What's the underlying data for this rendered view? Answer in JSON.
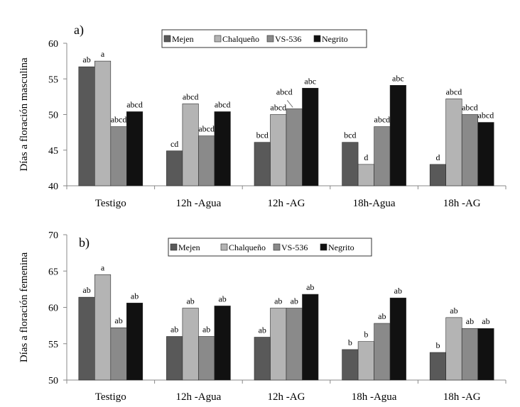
{
  "colors": {
    "series": [
      "#595959",
      "#b4b4b4",
      "#8a8a8a",
      "#111111"
    ],
    "axis": "#888888",
    "bar_edge": "#2a2a2a"
  },
  "chart_data": [
    {
      "type": "bar",
      "panel_label": "a)",
      "ylabel": "Días a floración masculina",
      "ylim": [
        40,
        60
      ],
      "yticks": [
        "40",
        "45",
        "50",
        "55",
        "60"
      ],
      "grid": false,
      "legend_position": "top-center",
      "categories": [
        "Testigo",
        "12h -Agua",
        "12h -AG",
        "18h-Agua",
        "18h -AG"
      ],
      "series": [
        {
          "name": "Mejen",
          "values": [
            56.7,
            44.9,
            46.1,
            46.1,
            43.0
          ]
        },
        {
          "name": "Chalqueño",
          "values": [
            57.5,
            51.5,
            50.0,
            43.0,
            52.2
          ]
        },
        {
          "name": "VS-536",
          "values": [
            48.3,
            47.0,
            50.8,
            48.3,
            50.0
          ]
        },
        {
          "name": "Negrito",
          "values": [
            50.4,
            50.4,
            53.7,
            54.1,
            48.9
          ]
        }
      ],
      "labels": [
        [
          "ab",
          "cd",
          "bcd",
          "bcd",
          "d"
        ],
        [
          "a",
          "abcd",
          "abcd",
          "d",
          "abcd"
        ],
        [
          "abcd",
          "abcd",
          "abcd",
          "abcd",
          "abcd"
        ],
        [
          "abcd",
          "abcd",
          "abc",
          "abc",
          "abcd"
        ]
      ]
    },
    {
      "type": "bar",
      "panel_label": "b)",
      "ylabel": "Días a floración femenina",
      "ylim": [
        50,
        70
      ],
      "yticks": [
        "50",
        "55",
        "60",
        "65",
        "70"
      ],
      "grid": false,
      "legend_position": "top-center",
      "categories": [
        "Testigo",
        "12h -Agua",
        "12h -AG",
        "18h -Agua",
        "18h -AG"
      ],
      "series": [
        {
          "name": "Mejen",
          "values": [
            61.4,
            56.0,
            55.9,
            54.2,
            53.8
          ]
        },
        {
          "name": "Chalqueño",
          "values": [
            64.5,
            59.9,
            59.9,
            55.3,
            58.6
          ]
        },
        {
          "name": "VS-536",
          "values": [
            57.2,
            56.0,
            59.9,
            57.8,
            57.1
          ]
        },
        {
          "name": "Negrito",
          "values": [
            60.6,
            60.2,
            61.8,
            61.3,
            57.1
          ]
        }
      ],
      "labels": [
        [
          "ab",
          "ab",
          "ab",
          "b",
          "b"
        ],
        [
          "a",
          "ab",
          "ab",
          "b",
          "ab"
        ],
        [
          "ab",
          "ab",
          "ab",
          "ab",
          "ab"
        ],
        [
          "ab",
          "ab",
          "ab",
          "ab",
          "ab"
        ]
      ]
    }
  ]
}
